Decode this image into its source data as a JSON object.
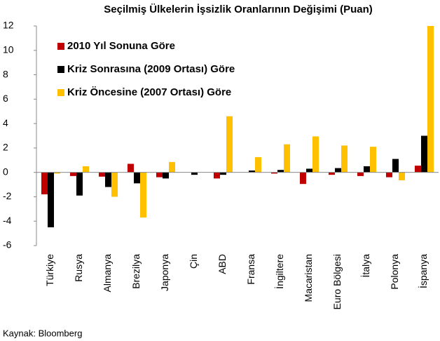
{
  "chart_data": {
    "type": "bar",
    "title": "Seçilmiş Ülkelerin İşsizlik Oranlarının Değişimi (Puan)",
    "categories": [
      "Türkiye",
      "Rusya",
      "Almanya",
      "Brezilya",
      "Japonya",
      "Çin",
      "ABD",
      "Fransa",
      "İngiltere",
      "Macaristan",
      "Euro Bölgesi",
      "İtalya",
      "Polonya",
      "İspanya"
    ],
    "series": [
      {
        "name": "2010 Yıl Sonuna Göre",
        "color": "#c00000",
        "values": [
          -1.8,
          -0.3,
          -0.35,
          0.7,
          -0.4,
          0,
          -0.5,
          0,
          -0.1,
          -0.95,
          -0.2,
          -0.3,
          -0.4,
          0.55
        ]
      },
      {
        "name": "Kriz Sonrasına (2009 Ortası) Göre",
        "color": "#000000",
        "values": [
          -4.5,
          -1.9,
          -1.2,
          -0.9,
          -0.5,
          -0.2,
          -0.2,
          0.15,
          0.2,
          0.3,
          0.35,
          0.5,
          1.1,
          3.0
        ]
      },
      {
        "name": "Kriz Öncesine (2007 Ortası) Göre",
        "color": "#ffc000",
        "values": [
          -0.1,
          0.5,
          -2.0,
          -3.7,
          0.85,
          0,
          4.6,
          1.25,
          2.3,
          2.95,
          2.2,
          2.1,
          -0.65,
          12.0
        ]
      }
    ],
    "ylim": [
      -6,
      12
    ],
    "yticks": [
      -6,
      -4,
      -2,
      0,
      2,
      4,
      6,
      8,
      10,
      12
    ],
    "grid": false,
    "legend": "upper left",
    "note": "Kaynak: Bloomberg"
  }
}
